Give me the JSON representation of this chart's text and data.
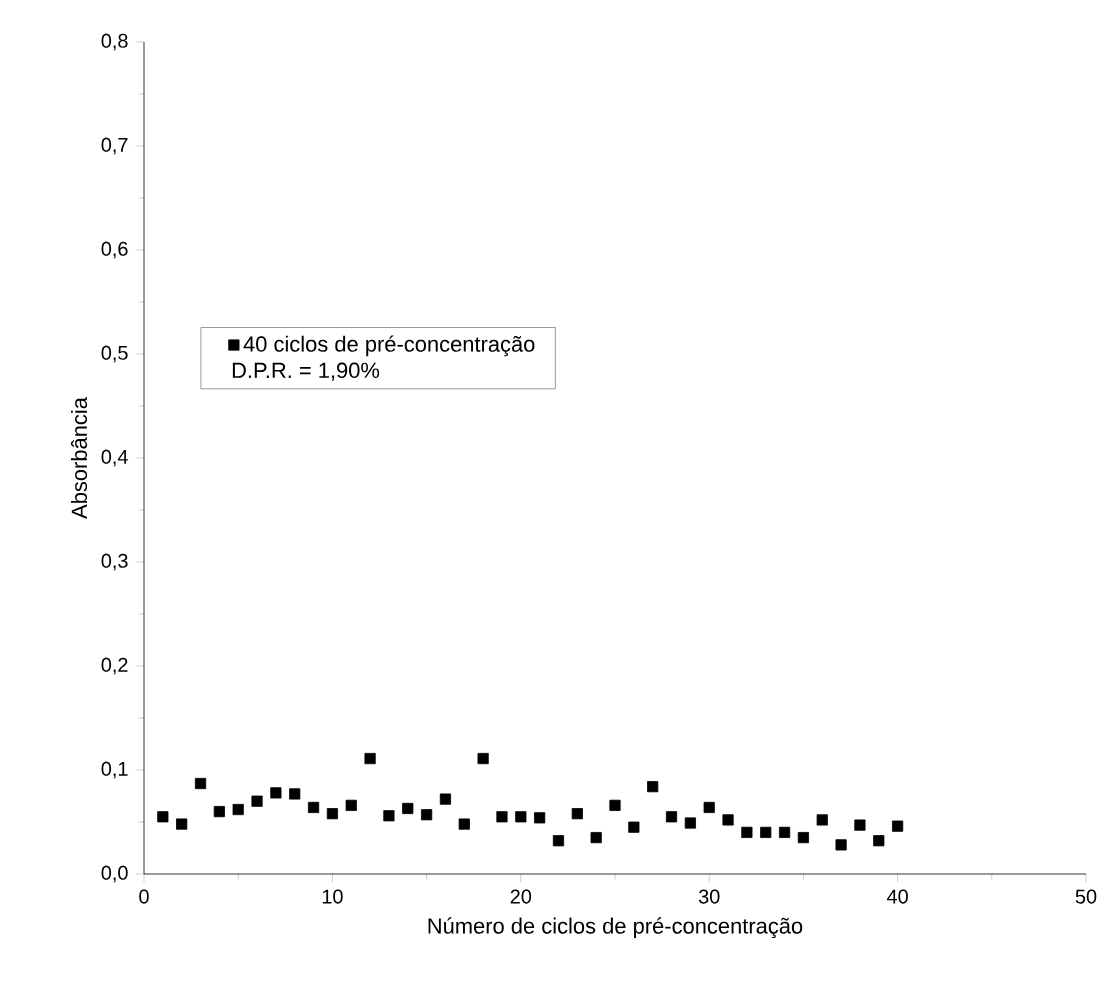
{
  "chart_data": {
    "type": "scatter",
    "xlabel": "Número de ciclos de pré-concentração",
    "ylabel": "Absorbância",
    "x": [
      1,
      2,
      3,
      4,
      5,
      6,
      7,
      8,
      9,
      10,
      11,
      12,
      13,
      14,
      15,
      16,
      17,
      18,
      19,
      20,
      21,
      22,
      23,
      24,
      25,
      26,
      27,
      28,
      29,
      30,
      31,
      32,
      33,
      34,
      35,
      36,
      37,
      38,
      39,
      40
    ],
    "series": [
      {
        "name": "40 ciclos de pré-concentração",
        "color": "#000000",
        "values": [
          0.055,
          0.048,
          0.087,
          0.06,
          0.062,
          0.07,
          0.078,
          0.077,
          0.064,
          0.058,
          0.066,
          0.111,
          0.056,
          0.063,
          0.057,
          0.072,
          0.048,
          0.111,
          0.055,
          0.055,
          0.054,
          0.032,
          0.058,
          0.035,
          0.066,
          0.045,
          0.084,
          0.055,
          0.049,
          0.064,
          0.052,
          0.04,
          0.04,
          0.04,
          0.035,
          0.052,
          0.028,
          0.047,
          0.032,
          0.046
        ]
      }
    ],
    "annotations": [
      "D.P.R. = 1,90%"
    ],
    "xlim": [
      0,
      50
    ],
    "xticks": [
      0,
      10,
      20,
      30,
      40,
      50
    ],
    "ylim": [
      0,
      0.8
    ],
    "yticks": [
      {
        "value": 0,
        "label": "0,0"
      },
      {
        "value": 0.1,
        "label": "0,1"
      },
      {
        "value": 0.2,
        "label": "0,2"
      },
      {
        "value": 0.3,
        "label": "0,3"
      },
      {
        "value": 0.4,
        "label": "0,4"
      },
      {
        "value": 0.5,
        "label": "0,5"
      },
      {
        "value": 0.6,
        "label": "0,6"
      },
      {
        "value": 0.7,
        "label": "0,7"
      },
      {
        "value": 0.8,
        "label": "0,8"
      }
    ],
    "marker": "square",
    "legend": "left",
    "grid": false
  }
}
